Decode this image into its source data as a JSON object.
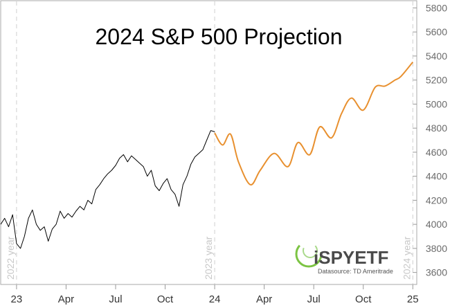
{
  "chart_data": {
    "type": "line",
    "title": "2024 S&P 500 Projection",
    "y_ticks": [
      3600,
      3800,
      4000,
      4200,
      4400,
      4600,
      4800,
      5000,
      5200,
      5400,
      5600,
      5800
    ],
    "ylim": [
      3500,
      5860
    ],
    "x_ticks": [
      "23",
      "Apr",
      "Jul",
      "Oct",
      "24",
      "Apr",
      "Jul",
      "Oct",
      "25"
    ],
    "year_markers": [
      {
        "label": "2022 year",
        "x": 2023.0
      },
      {
        "label": "2023 year",
        "x": 2024.0
      },
      {
        "label": "2024 year",
        "x": 2025.0
      }
    ],
    "series": [
      {
        "color": "#000000",
        "x": [
          2022.92,
          2022.94,
          2022.96,
          2022.98,
          2023.0,
          2023.02,
          2023.04,
          2023.06,
          2023.08,
          2023.1,
          2023.12,
          2023.14,
          2023.16,
          2023.18,
          2023.2,
          2023.22,
          2023.24,
          2023.26,
          2023.28,
          2023.3,
          2023.32,
          2023.34,
          2023.36,
          2023.38,
          2023.4,
          2023.42,
          2023.44,
          2023.46,
          2023.48,
          2023.5,
          2023.52,
          2023.54,
          2023.56,
          2023.58,
          2023.6,
          2023.62,
          2023.64,
          2023.66,
          2023.68,
          2023.7,
          2023.72,
          2023.74,
          2023.76,
          2023.78,
          2023.8,
          2023.82,
          2023.84,
          2023.86,
          2023.88,
          2023.9,
          2023.92,
          2023.94,
          2023.96,
          2023.98,
          2024.0
        ],
        "values": [
          4000,
          4050,
          3980,
          4080,
          3840,
          3800,
          3900,
          4050,
          4120,
          4000,
          3950,
          3980,
          3860,
          3960,
          4000,
          4110,
          4050,
          4090,
          4060,
          4110,
          4150,
          4120,
          4200,
          4170,
          4290,
          4330,
          4380,
          4420,
          4450,
          4490,
          4550,
          4580,
          4520,
          4570,
          4540,
          4510,
          4480,
          4400,
          4450,
          4320,
          4280,
          4340,
          4380,
          4290,
          4250,
          4150,
          4330,
          4400,
          4500,
          4560,
          4590,
          4620,
          4700,
          4780,
          4770
        ]
      },
      {
        "color": "#E8902F",
        "x": [
          2024.0,
          2024.04,
          2024.08,
          2024.12,
          2024.18,
          2024.23,
          2024.3,
          2024.37,
          2024.42,
          2024.48,
          2024.53,
          2024.59,
          2024.64,
          2024.69,
          2024.75,
          2024.81,
          2024.86,
          2024.91,
          2024.94,
          2025.0
        ],
        "values": [
          4760,
          4660,
          4750,
          4520,
          4330,
          4450,
          4590,
          4480,
          4680,
          4580,
          4810,
          4720,
          4920,
          5050,
          4950,
          5140,
          5150,
          5200,
          5230,
          5350
        ]
      }
    ]
  },
  "logo": {
    "name": "iSPYETF",
    "source": "Datasource: TD Ameritrade"
  }
}
